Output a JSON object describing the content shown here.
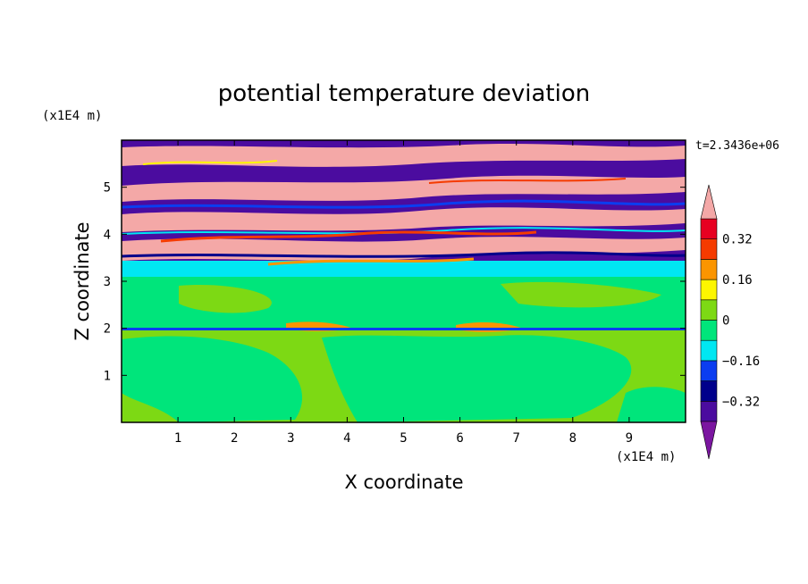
{
  "chart_data": {
    "type": "heatmap",
    "title": "potential temperature deviation",
    "xlabel": "X coordinate",
    "ylabel": "Z coordinate",
    "x_unit": "(x1E4 m)",
    "y_unit": "(x1E4 m)",
    "time_label": "t=2.3436e+06",
    "xlim": [
      0,
      10
    ],
    "ylim": [
      0,
      6
    ],
    "x_ticks": [
      "1",
      "2",
      "3",
      "4",
      "5",
      "6",
      "7",
      "8",
      "9"
    ],
    "y_ticks": [
      "1",
      "2",
      "3",
      "4",
      "5"
    ],
    "colorbar": {
      "labels": [
        "0.32",
        "0.16",
        "0",
        "−0.16",
        "−0.32"
      ],
      "label_values": [
        0.32,
        0.16,
        0,
        -0.16,
        -0.32
      ],
      "levels": [
        -0.4,
        -0.32,
        -0.24,
        -0.16,
        -0.08,
        0,
        0.08,
        0.16,
        0.24,
        0.32,
        0.4
      ],
      "colors": [
        "#4b0c9f",
        "#00008b",
        "#0b3df0",
        "#00e7f2",
        "#00e57b",
        "#7dd914",
        "#fdf600",
        "#fb9500",
        "#f53b00",
        "#e70021"
      ],
      "extend_low_color": "#7b16a0",
      "extend_high_color": "#f4a8a7"
    },
    "layers": [
      {
        "z_range": [
          0,
          2.0
        ],
        "dominant": "0 to 0.08 with patches -0.08 to 0",
        "value": 0.04
      },
      {
        "z_range": [
          2.0,
          3.4
        ],
        "dominant": "-0.08 to 0",
        "value": -0.04
      },
      {
        "z_range": [
          3.4,
          6.0
        ],
        "dominant": "alternating bands > 0.4 and < -0.4",
        "value": null
      }
    ]
  }
}
